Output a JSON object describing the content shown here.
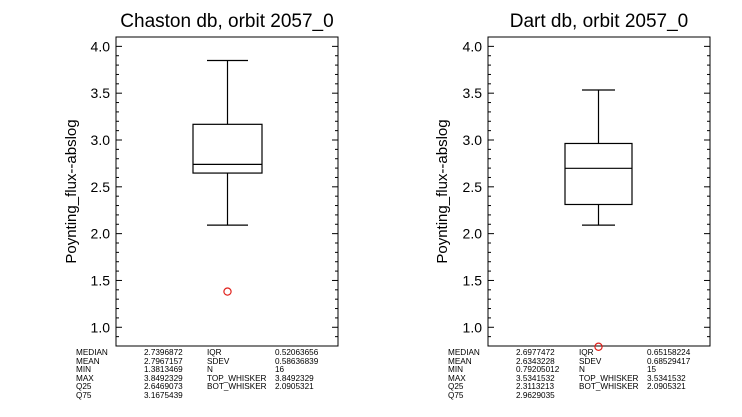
{
  "chart_data": [
    {
      "type": "box",
      "title": "Chaston db, orbit 2057_0",
      "ylabel": "Poynting_flux--abslog",
      "ylim": [
        0.8,
        4.1
      ],
      "yticks": [
        "1.0",
        "1.5",
        "2.0",
        "2.5",
        "3.0",
        "3.5",
        "4.0"
      ],
      "box": {
        "bottom_whisker": 2.0905321,
        "q25": 2.6469073,
        "median": 2.7396872,
        "q75": 3.1675439,
        "top_whisker": 3.8492329
      },
      "outliers": [
        1.3813469
      ],
      "outlier_color": "#e0201b",
      "stats": [
        [
          "MEDIAN",
          "2.7396872",
          "IQR",
          "0.52063656"
        ],
        [
          "MEAN",
          "2.7967157",
          "SDEV",
          "0.58636839"
        ],
        [
          "MIN",
          "1.3813469",
          "N",
          "16"
        ],
        [
          "MAX",
          "3.8492329",
          "TOP_WHISKER",
          "3.8492329"
        ],
        [
          "Q25",
          "2.6469073",
          "BOT_WHISKER",
          "2.0905321"
        ],
        [
          "Q75",
          "3.1675439",
          "",
          ""
        ]
      ]
    },
    {
      "type": "box",
      "title": "Dart db, orbit 2057_0",
      "ylabel": "Poynting_flux--abslog",
      "ylim": [
        0.8,
        4.1
      ],
      "yticks": [
        "1.0",
        "1.5",
        "2.0",
        "2.5",
        "3.0",
        "3.5",
        "4.0"
      ],
      "box": {
        "bottom_whisker": 2.0905321,
        "q25": 2.3113213,
        "median": 2.6977472,
        "q75": 2.9629035,
        "top_whisker": 3.5341532
      },
      "outliers": [
        0.79205012
      ],
      "outlier_color": "#e0201b",
      "stats": [
        [
          "MEDIAN",
          "2.6977472",
          "IQR",
          "0.65158224"
        ],
        [
          "MEAN",
          "2.6343228",
          "SDEV",
          "0.68529417"
        ],
        [
          "MIN",
          "0.79205012",
          "N",
          "15"
        ],
        [
          "MAX",
          "3.5341532",
          "TOP_WHISKER",
          "3.5341532"
        ],
        [
          "Q25",
          "2.3113213",
          "BOT_WHISKER",
          "2.0905321"
        ],
        [
          "Q75",
          "2.9629035",
          "",
          ""
        ]
      ]
    }
  ]
}
